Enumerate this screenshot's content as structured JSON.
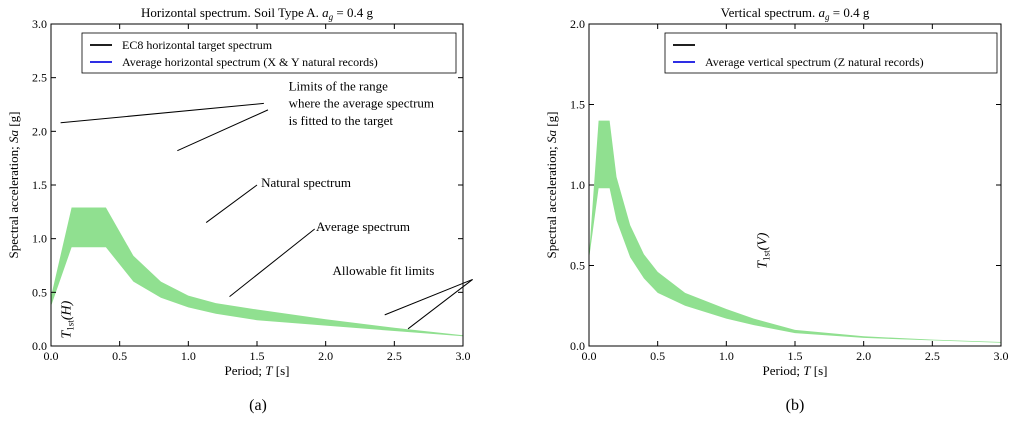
{
  "panels": [
    {
      "caption": "(a)",
      "chart_data": {
        "type": "area",
        "title": "Horizontal spectrum. Soil Type A. a_g = 0.4 g",
        "title_parts": {
          "text": "Horizontal spectrum. Soil Type A. ",
          "sym": "a",
          "sub": "g",
          "rest": " = 0.4 g"
        },
        "xlabel": "Period; T [s]",
        "ylabel": "Spectral acceleration; Sa [g]",
        "xlim": [
          0,
          3.0
        ],
        "ylim": [
          0,
          3.0
        ],
        "xticks": [
          0.0,
          0.5,
          1.0,
          1.5,
          2.0,
          2.5,
          3.0
        ],
        "xtick_labels": [
          "0.0",
          "0.5",
          "1.0",
          "1.5",
          "2.0",
          "2.5",
          "3.0"
        ],
        "yticks": [
          0.0,
          0.5,
          1.0,
          1.5,
          2.0,
          2.5,
          3.0
        ],
        "ytick_labels": [
          "0.0",
          "0.5",
          "1.0",
          "1.5",
          "2.0",
          "2.5",
          "3.0"
        ],
        "grid": false,
        "legend_position": "top",
        "legend": [
          {
            "label": "EC8 horizontal target spectrum",
            "color": "#000000"
          },
          {
            "label": "Average horizontal spectrum (X & Y natural records)",
            "color": "#1010e0"
          }
        ],
        "band": {
          "color": "#90e090",
          "x": [
            0.0,
            0.15,
            0.4,
            0.6,
            0.8,
            1.0,
            1.2,
            1.5,
            2.0,
            2.5,
            3.0
          ],
          "upper": [
            0.46,
            1.29,
            1.29,
            0.84,
            0.6,
            0.47,
            0.4,
            0.34,
            0.25,
            0.17,
            0.1
          ],
          "lower": [
            0.37,
            0.92,
            0.92,
            0.6,
            0.45,
            0.36,
            0.3,
            0.24,
            0.19,
            0.14,
            0.09
          ]
        },
        "annotations": [
          {
            "text": "Limits of the range",
            "tx": 1.73,
            "ty": 2.38
          },
          {
            "text": "where the average spectrum",
            "tx": 1.73,
            "ty": 2.22
          },
          {
            "text": "is fitted to the target",
            "tx": 1.73,
            "ty": 2.06
          },
          {
            "text": "Natural spectrum",
            "tx": 1.53,
            "ty": 1.48
          },
          {
            "text": "Average spectrum",
            "tx": 1.93,
            "ty": 1.07
          },
          {
            "text": "Allowable fit limits",
            "tx": 2.05,
            "ty": 0.66
          }
        ],
        "annotation_arrows": [
          {
            "from": [
              1.55,
              2.26
            ],
            "to": [
              0.07,
              2.08
            ]
          },
          {
            "from": [
              1.58,
              2.2
            ],
            "to": [
              0.92,
              1.82
            ]
          },
          {
            "from": [
              1.5,
              1.5
            ],
            "to": [
              1.13,
              1.15
            ]
          },
          {
            "from": [
              1.92,
              1.09
            ],
            "to": [
              1.3,
              0.46
            ]
          },
          {
            "from": [
              3.07,
              0.62
            ],
            "to": [
              2.43,
              0.29
            ]
          },
          {
            "from": [
              3.07,
              0.62
            ],
            "to": [
              2.6,
              0.16
            ]
          }
        ],
        "marker_label": {
          "sym": "T",
          "sub": "1st",
          "tail": "(H)",
          "x": 0.07,
          "y": 0.07
        }
      }
    },
    {
      "caption": "(b)",
      "chart_data": {
        "type": "area",
        "title": "Vertical spectrum. a_g = 0.4 g",
        "title_parts": {
          "text": "Vertical spectrum. ",
          "sym": "a",
          "sub": "g",
          "rest": " = 0.4 g"
        },
        "xlabel": "Period; T [s]",
        "ylabel": "Spectral acceleration; Sa [g]",
        "xlim": [
          0,
          3.0
        ],
        "ylim": [
          0,
          2.0
        ],
        "xticks": [
          0.0,
          0.5,
          1.0,
          1.5,
          2.0,
          2.5,
          3.0
        ],
        "xtick_labels": [
          "0.0",
          "0.5",
          "1.0",
          "1.5",
          "2.0",
          "2.5",
          "3.0"
        ],
        "yticks": [
          0.0,
          0.5,
          1.0,
          1.5,
          2.0
        ],
        "ytick_labels": [
          "0.0",
          "0.5",
          "1.0",
          "1.5",
          "2.0"
        ],
        "grid": false,
        "legend_position": "top-right",
        "legend": [
          {
            "label": "",
            "color": "#000000"
          },
          {
            "label": "Average vertical spectrum (Z natural records)",
            "color": "#1010e0"
          }
        ],
        "band": {
          "color": "#90e090",
          "x": [
            0.0,
            0.07,
            0.15,
            0.2,
            0.3,
            0.4,
            0.5,
            0.7,
            1.0,
            1.2,
            1.5,
            2.0,
            2.5,
            3.0
          ],
          "upper": [
            0.56,
            1.4,
            1.4,
            1.05,
            0.75,
            0.57,
            0.46,
            0.33,
            0.23,
            0.17,
            0.1,
            0.06,
            0.04,
            0.025
          ],
          "lower": [
            0.54,
            0.98,
            0.98,
            0.78,
            0.55,
            0.42,
            0.33,
            0.25,
            0.17,
            0.13,
            0.08,
            0.05,
            0.035,
            0.02
          ]
        },
        "annotations": [],
        "annotation_arrows": [],
        "marker_label": {
          "sym": "T",
          "sub": "1st",
          "tail": "(V)",
          "x": 1.22,
          "y": 0.48
        }
      }
    }
  ]
}
